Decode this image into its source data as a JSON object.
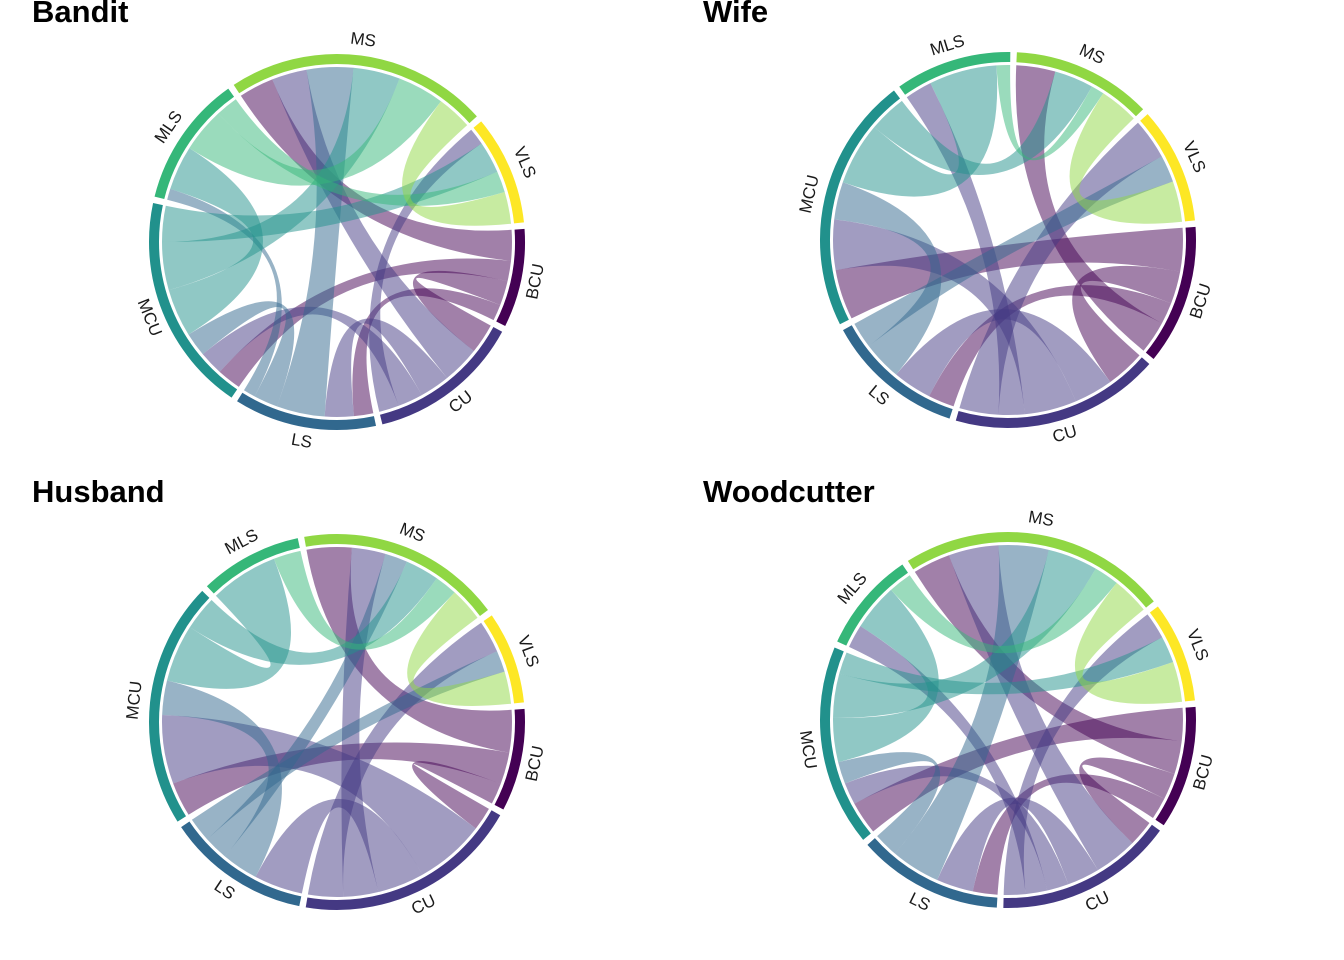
{
  "colors": {
    "BCU": "#440154",
    "CU": "#443983",
    "LS": "#31688e",
    "MCU": "#21918c",
    "MLS": "#35b779",
    "MS": "#90d743",
    "VLS": "#fde725"
  },
  "chart_data": [
    {
      "type": "chord",
      "title": "Bandit",
      "sectors": [
        {
          "name": "BCU",
          "size": 4.5
        },
        {
          "name": "CU",
          "size": 7
        },
        {
          "name": "LS",
          "size": 6.5
        },
        {
          "name": "MCU",
          "size": 10
        },
        {
          "name": "MLS",
          "size": 6
        },
        {
          "name": "MS",
          "size": 12
        },
        {
          "name": "VLS",
          "size": 5
        }
      ],
      "links": [
        {
          "from": "BCU",
          "to": "MS",
          "value": 1.5
        },
        {
          "from": "BCU",
          "to": "MCU",
          "value": 1.0
        },
        {
          "from": "BCU",
          "to": "CU",
          "value": 1.2
        },
        {
          "from": "BCU",
          "to": "LS",
          "value": 0.8
        },
        {
          "from": "CU",
          "to": "MS",
          "value": 1.5
        },
        {
          "from": "CU",
          "to": "LS",
          "value": 1.2
        },
        {
          "from": "CU",
          "to": "MCU",
          "value": 1.0
        },
        {
          "from": "CU",
          "to": "VLS",
          "value": 0.8
        },
        {
          "from": "LS",
          "to": "MS",
          "value": 2.0
        },
        {
          "from": "LS",
          "to": "MCU",
          "value": 1.0
        },
        {
          "from": "LS",
          "to": "MLS",
          "value": 0.5
        },
        {
          "from": "MCU",
          "to": "MLS",
          "value": 2.0
        },
        {
          "from": "MCU",
          "to": "MS",
          "value": 2.0
        },
        {
          "from": "MCU",
          "to": "VLS",
          "value": 1.5
        },
        {
          "from": "MLS",
          "to": "MS",
          "value": 2.0
        },
        {
          "from": "MLS",
          "to": "VLS",
          "value": 1.0
        },
        {
          "from": "MS",
          "to": "VLS",
          "value": 1.5
        }
      ]
    },
    {
      "type": "chord",
      "title": "Wife",
      "sectors": [
        {
          "name": "BCU",
          "size": 6
        },
        {
          "name": "CU",
          "size": 9
        },
        {
          "name": "LS",
          "size": 6
        },
        {
          "name": "MCU",
          "size": 11
        },
        {
          "name": "MLS",
          "size": 5
        },
        {
          "name": "MS",
          "size": 6
        },
        {
          "name": "VLS",
          "size": 5
        }
      ],
      "links": [
        {
          "from": "BCU",
          "to": "MCU",
          "value": 2.0
        },
        {
          "from": "BCU",
          "to": "CU",
          "value": 1.5
        },
        {
          "from": "BCU",
          "to": "LS",
          "value": 1.0
        },
        {
          "from": "BCU",
          "to": "MS",
          "value": 1.5
        },
        {
          "from": "CU",
          "to": "LS",
          "value": 1.5
        },
        {
          "from": "CU",
          "to": "MCU",
          "value": 2.0
        },
        {
          "from": "CU",
          "to": "MLS",
          "value": 1.0
        },
        {
          "from": "CU",
          "to": "VLS",
          "value": 1.5
        },
        {
          "from": "LS",
          "to": "MCU",
          "value": 1.5
        },
        {
          "from": "LS",
          "to": "VLS",
          "value": 1.0
        },
        {
          "from": "MCU",
          "to": "MLS",
          "value": 2.5
        },
        {
          "from": "MCU",
          "to": "MS",
          "value": 1.5
        },
        {
          "from": "MLS",
          "to": "MS",
          "value": 0.5
        },
        {
          "from": "MS",
          "to": "VLS",
          "value": 1.5
        }
      ]
    },
    {
      "type": "chord",
      "title": "Husband",
      "sectors": [
        {
          "name": "BCU",
          "size": 5
        },
        {
          "name": "CU",
          "size": 11
        },
        {
          "name": "LS",
          "size": 7
        },
        {
          "name": "MCU",
          "size": 12
        },
        {
          "name": "MLS",
          "size": 5
        },
        {
          "name": "MS",
          "size": 10
        },
        {
          "name": "VLS",
          "size": 4.5
        }
      ],
      "links": [
        {
          "from": "BCU",
          "to": "MS",
          "value": 2.0
        },
        {
          "from": "BCU",
          "to": "MCU",
          "value": 1.5
        },
        {
          "from": "BCU",
          "to": "CU",
          "value": 1.0
        },
        {
          "from": "CU",
          "to": "MCU",
          "value": 3.0
        },
        {
          "from": "CU",
          "to": "LS",
          "value": 2.0
        },
        {
          "from": "CU",
          "to": "MS",
          "value": 1.5
        },
        {
          "from": "CU",
          "to": "VLS",
          "value": 1.5
        },
        {
          "from": "LS",
          "to": "MCU",
          "value": 1.5
        },
        {
          "from": "LS",
          "to": "MS",
          "value": 1.0
        },
        {
          "from": "LS",
          "to": "VLS",
          "value": 1.0
        },
        {
          "from": "MCU",
          "to": "MLS",
          "value": 2.5
        },
        {
          "from": "MCU",
          "to": "MS",
          "value": 1.5
        },
        {
          "from": "MLS",
          "to": "MS",
          "value": 1.0
        },
        {
          "from": "MS",
          "to": "VLS",
          "value": 1.5
        }
      ]
    },
    {
      "type": "chord",
      "title": "Woodcutter",
      "sectors": [
        {
          "name": "BCU",
          "size": 5.5
        },
        {
          "name": "CU",
          "size": 8
        },
        {
          "name": "LS",
          "size": 6.5
        },
        {
          "name": "MCU",
          "size": 9
        },
        {
          "name": "MLS",
          "size": 4.5
        },
        {
          "name": "MS",
          "size": 12
        },
        {
          "name": "VLS",
          "size": 4.5
        }
      ],
      "links": [
        {
          "from": "BCU",
          "to": "MCU",
          "value": 1.5
        },
        {
          "from": "BCU",
          "to": "MS",
          "value": 1.5
        },
        {
          "from": "BCU",
          "to": "CU",
          "value": 1.2
        },
        {
          "from": "BCU",
          "to": "LS",
          "value": 1.0
        },
        {
          "from": "CU",
          "to": "MS",
          "value": 2.0
        },
        {
          "from": "CU",
          "to": "LS",
          "value": 1.5
        },
        {
          "from": "CU",
          "to": "MCU",
          "value": 1.0
        },
        {
          "from": "CU",
          "to": "MLS",
          "value": 1.0
        },
        {
          "from": "CU",
          "to": "VLS",
          "value": 1.0
        },
        {
          "from": "LS",
          "to": "MS",
          "value": 2.0
        },
        {
          "from": "LS",
          "to": "MCU",
          "value": 1.0
        },
        {
          "from": "MCU",
          "to": "MLS",
          "value": 2.0
        },
        {
          "from": "MCU",
          "to": "MS",
          "value": 2.0
        },
        {
          "from": "MCU",
          "to": "VLS",
          "value": 1.0
        },
        {
          "from": "MLS",
          "to": "MS",
          "value": 1.0
        },
        {
          "from": "MS",
          "to": "VLS",
          "value": 1.5
        }
      ]
    }
  ]
}
